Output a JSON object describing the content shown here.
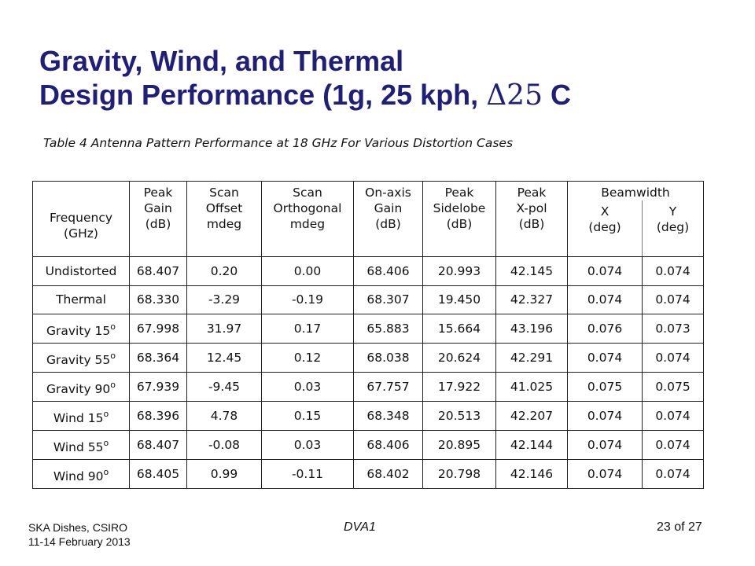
{
  "slide": {
    "title_line1": "Gravity, Wind, and Thermal",
    "title_line2_pre": "Design Performance (1g, 25 kph, ",
    "title_delta": "Δ25",
    "title_line2_post": " C"
  },
  "table": {
    "caption": "Table 4  Antenna Pattern Performance at 18 GHz For Various Distortion Cases",
    "headers": {
      "frequency": [
        "Frequency",
        "(GHz)"
      ],
      "peak_gain": [
        "Peak",
        "Gain",
        "(dB)"
      ],
      "scan_offset": [
        "Scan",
        "Offset",
        "mdeg"
      ],
      "scan_orthogonal": [
        "Scan",
        "Orthogonal",
        "mdeg"
      ],
      "onaxis_gain": [
        "On-axis",
        "Gain",
        "(dB)"
      ],
      "peak_sidelobe": [
        "Peak",
        "Sidelobe",
        "(dB)"
      ],
      "peak_xpol": [
        "Peak",
        "X-pol",
        "(dB)"
      ],
      "beamwidth": "Beamwidth",
      "bw_x": [
        "X",
        "(deg)"
      ],
      "bw_y": [
        "Y",
        "(deg)"
      ]
    },
    "rows": [
      {
        "label": "Undistorted",
        "sup": "",
        "cells": [
          "68.407",
          "0.20",
          "0.00",
          "68.406",
          "20.993",
          "42.145",
          "0.074",
          "0.074"
        ]
      },
      {
        "label": "Thermal",
        "sup": "",
        "cells": [
          "68.330",
          "-3.29",
          "-0.19",
          "68.307",
          "19.450",
          "42.327",
          "0.074",
          "0.074"
        ]
      },
      {
        "label": "Gravity 15",
        "sup": "o",
        "cells": [
          "67.998",
          "31.97",
          "0.17",
          "65.883",
          "15.664",
          "43.196",
          "0.076",
          "0.073"
        ]
      },
      {
        "label": "Gravity 55",
        "sup": "o",
        "cells": [
          "68.364",
          "12.45",
          "0.12",
          "68.038",
          "20.624",
          "42.291",
          "0.074",
          "0.074"
        ]
      },
      {
        "label": "Gravity 90",
        "sup": "o",
        "cells": [
          "67.939",
          "-9.45",
          "0.03",
          "67.757",
          "17.922",
          "41.025",
          "0.075",
          "0.075"
        ]
      },
      {
        "label": "Wind 15",
        "sup": "o",
        "cells": [
          "68.396",
          "4.78",
          "0.15",
          "68.348",
          "20.513",
          "42.207",
          "0.074",
          "0.074"
        ]
      },
      {
        "label": "Wind 55",
        "sup": "o",
        "cells": [
          "68.407",
          "-0.08",
          "0.03",
          "68.406",
          "20.895",
          "42.144",
          "0.074",
          "0.074"
        ]
      },
      {
        "label": "Wind 90",
        "sup": "o",
        "cells": [
          "68.405",
          "0.99",
          "-0.11",
          "68.402",
          "20.798",
          "42.146",
          "0.074",
          "0.074"
        ]
      }
    ]
  },
  "footer": {
    "left_line1": "SKA Dishes, CSIRO",
    "left_line2": "11-14 February 2013",
    "center": "DVA1",
    "page": "23 of 27"
  },
  "colors": {
    "title": "#1f1f7a",
    "border": "#222222"
  }
}
